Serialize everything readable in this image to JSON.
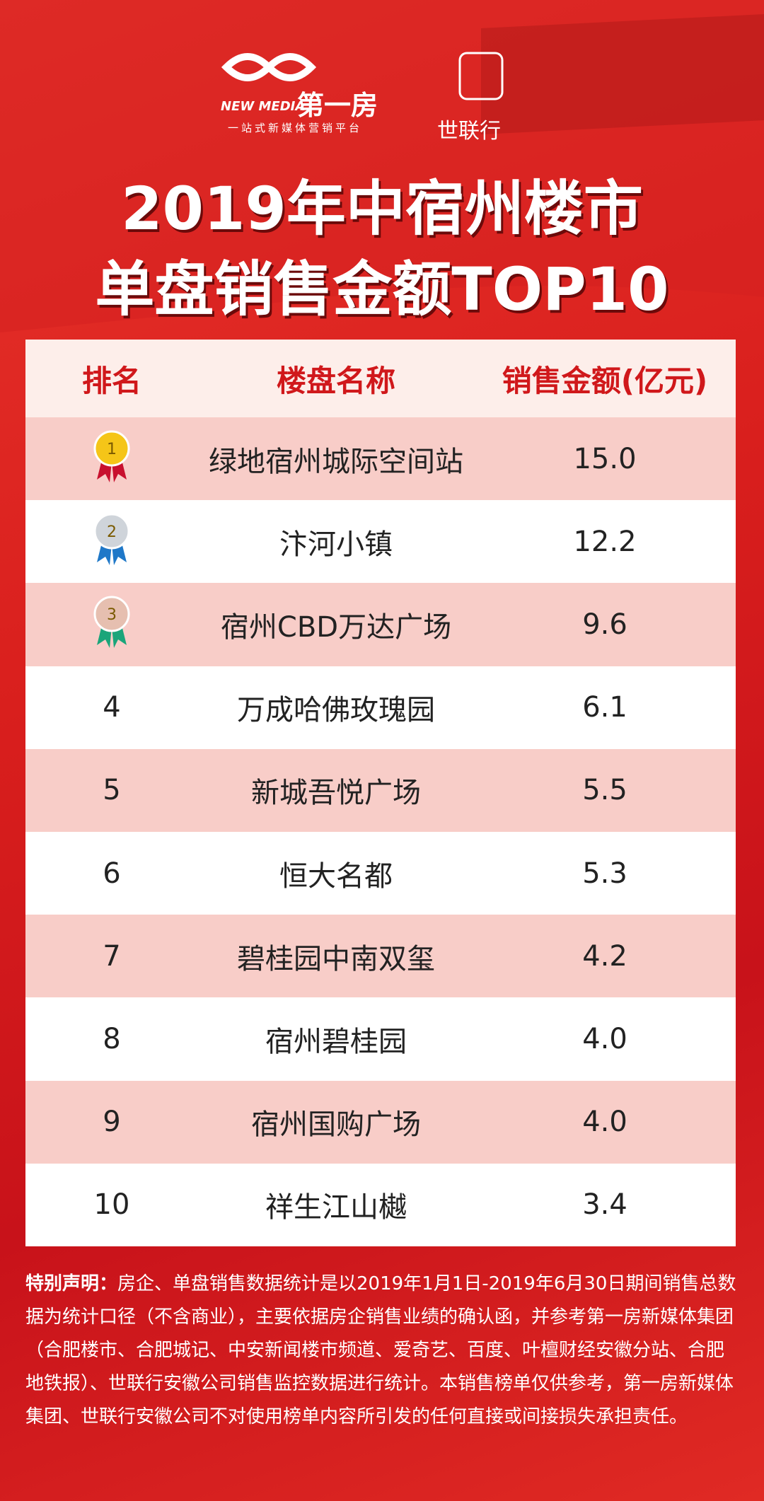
{
  "header": {
    "logo_mark": "NEW MEDIA",
    "logo_name": "第一房",
    "logo_tagline": "一站式新媒体营销平台",
    "partner": "世联行",
    "title_line1": "2019年中宿州楼市",
    "title_line2": "单盘销售金额TOP10"
  },
  "table": {
    "columns": [
      "排名",
      "楼盘名称",
      "销售金额(亿元)"
    ],
    "rows": [
      [
        "1",
        "绿地宿州城际空间站",
        "15.0"
      ],
      [
        "2",
        "汴河小镇",
        "12.2"
      ],
      [
        "3",
        "宿州CBD万达广场",
        "9.6"
      ],
      [
        "4",
        "万成哈佛玫瑰园",
        "6.1"
      ],
      [
        "5",
        "新城吾悦广场",
        "5.5"
      ],
      [
        "6",
        "恒大名都",
        "5.3"
      ],
      [
        "7",
        "碧桂园中南双玺",
        "4.2"
      ],
      [
        "8",
        "宿州碧桂园",
        "4.0"
      ],
      [
        "9",
        "宿州国购广场",
        "4.0"
      ],
      [
        "10",
        "祥生江山樾",
        "3.4"
      ]
    ]
  },
  "note": {
    "label": "特别声明：",
    "text": "房企、单盘销售数据统计是以2019年1月1日-2019年6月30日期间销售总数据为统计口径（不含商业），主要依据房企销售业绩的确认函，并参考第一房新媒体集团（合肥楼市、合肥城记、中安新闻楼市频道、爱奇艺、百度、叶檀财经安徽分站、合肥地铁报）、世联行安徽公司销售监控数据进行统计。本销售榜单仅供参考，第一房新媒体集团、世联行安徽公司不对使用榜单内容所引发的任何直接或间接损失承担责任。"
  }
}
